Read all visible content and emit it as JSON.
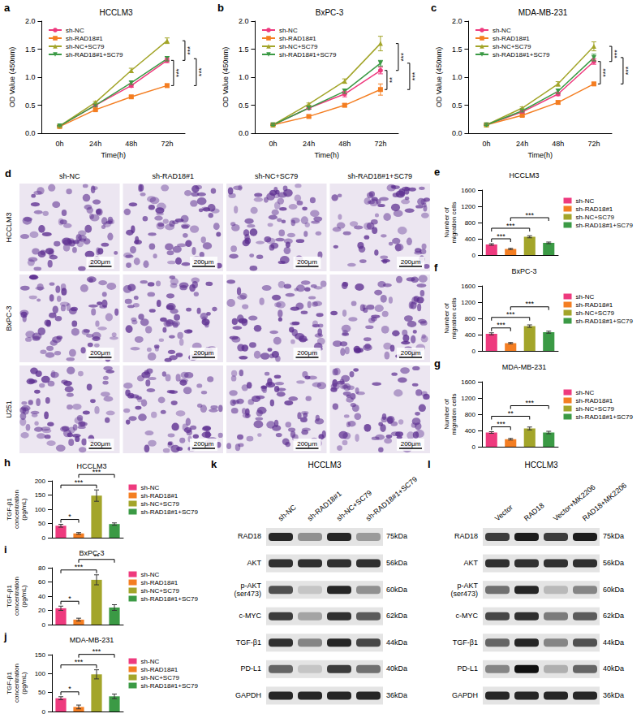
{
  "chart_data": [
    {
      "panel": "a",
      "type": "line",
      "title": "HCCLM3",
      "x_label": "Time(h)",
      "y_label": "OD Value (450nm)",
      "categories": [
        "0h",
        "24h",
        "48h",
        "72h"
      ],
      "ylim": [
        0,
        2
      ],
      "yticks": [
        {
          "value": 0,
          "label": "0.0"
        },
        {
          "value": 0.5,
          "label": "0.5"
        },
        {
          "value": 1,
          "label": "1.0"
        },
        {
          "value": 1.5,
          "label": "1.5"
        },
        {
          "value": 2,
          "label": "2.0"
        }
      ],
      "legend": "upper left",
      "series": [
        {
          "name": "sh-NC",
          "color": "#ee3a7e",
          "marker": "circle",
          "values": [
            0.13,
            0.5,
            0.85,
            1.3
          ],
          "errors": [
            0.01,
            0.02,
            0.03,
            0.04
          ]
        },
        {
          "name": "sh-RAD18#1",
          "color": "#f47e22",
          "marker": "square",
          "values": [
            0.12,
            0.42,
            0.65,
            0.85
          ],
          "errors": [
            0.01,
            0.02,
            0.02,
            0.03
          ]
        },
        {
          "name": "sh-NC+SC79",
          "color": "#a3a52a",
          "marker": "triangle",
          "values": [
            0.13,
            0.55,
            1.12,
            1.65
          ],
          "errors": [
            0.01,
            0.02,
            0.04,
            0.05
          ]
        },
        {
          "name": "sh-RAD18#1+SC79",
          "color": "#3b9a45",
          "marker": "triangle-down",
          "values": [
            0.13,
            0.5,
            0.9,
            1.33
          ],
          "errors": [
            0.01,
            0.02,
            0.03,
            0.04
          ]
        }
      ],
      "annotations": [
        {
          "text": "***",
          "pair": [
            "sh-NC",
            "sh-RAD18#1"
          ]
        },
        {
          "text": "***",
          "pair": [
            "sh-NC",
            "sh-NC+SC79"
          ]
        },
        {
          "text": "***",
          "pair": [
            "sh-RAD18#1",
            "sh-RAD18#1+SC79"
          ]
        }
      ]
    },
    {
      "panel": "b",
      "type": "line",
      "title": "BxPC-3",
      "x_label": "Time(h)",
      "y_label": "OD Value (450nm)",
      "categories": [
        "0h",
        "24h",
        "48h",
        "72h"
      ],
      "ylim": [
        0,
        2
      ],
      "yticks": [
        {
          "value": 0,
          "label": "0.0"
        },
        {
          "value": 0.5,
          "label": "0.5"
        },
        {
          "value": 1,
          "label": "1.0"
        },
        {
          "value": 1.5,
          "label": "1.5"
        },
        {
          "value": 2,
          "label": "2.0"
        }
      ],
      "legend": "upper left",
      "series": [
        {
          "name": "sh-NC",
          "color": "#ee3a7e",
          "marker": "circle",
          "values": [
            0.15,
            0.45,
            0.7,
            1.12
          ],
          "errors": [
            0.01,
            0.02,
            0.05,
            0.06
          ]
        },
        {
          "name": "sh-RAD18#1",
          "color": "#f47e22",
          "marker": "square",
          "values": [
            0.15,
            0.3,
            0.5,
            0.78
          ],
          "errors": [
            0.01,
            0.02,
            0.03,
            0.1
          ]
        },
        {
          "name": "sh-NC+SC79",
          "color": "#a3a52a",
          "marker": "triangle",
          "values": [
            0.15,
            0.52,
            0.93,
            1.6
          ],
          "errors": [
            0.01,
            0.02,
            0.04,
            0.13
          ]
        },
        {
          "name": "sh-RAD18#1+SC79",
          "color": "#3b9a45",
          "marker": "triangle-down",
          "values": [
            0.15,
            0.45,
            0.75,
            1.25
          ],
          "errors": [
            0.01,
            0.02,
            0.04,
            0.05
          ]
        }
      ],
      "annotations": [
        {
          "text": "**",
          "pair": [
            "sh-NC",
            "sh-RAD18#1"
          ]
        },
        {
          "text": "***",
          "pair": [
            "sh-NC",
            "sh-NC+SC79"
          ]
        },
        {
          "text": "***",
          "pair": [
            "sh-RAD18#1",
            "sh-RAD18#1+SC79"
          ]
        }
      ]
    },
    {
      "panel": "c",
      "type": "line",
      "title": "MDA-MB-231",
      "x_label": "Time(h)",
      "y_label": "OD Value (450nm)",
      "categories": [
        "0h",
        "24h",
        "48h",
        "72h"
      ],
      "ylim": [
        0,
        2
      ],
      "yticks": [
        {
          "value": 0,
          "label": "0.0"
        },
        {
          "value": 0.5,
          "label": "0.5"
        },
        {
          "value": 1,
          "label": "1.0"
        },
        {
          "value": 1.5,
          "label": "1.5"
        },
        {
          "value": 2,
          "label": "2.0"
        }
      ],
      "legend": "upper left",
      "series": [
        {
          "name": "sh-NC",
          "color": "#ee3a7e",
          "marker": "circle",
          "values": [
            0.15,
            0.38,
            0.7,
            1.28
          ],
          "errors": [
            0.01,
            0.02,
            0.03,
            0.05
          ]
        },
        {
          "name": "sh-RAD18#1",
          "color": "#f47e22",
          "marker": "square",
          "values": [
            0.15,
            0.32,
            0.55,
            0.88
          ],
          "errors": [
            0.01,
            0.02,
            0.03,
            0.03
          ]
        },
        {
          "name": "sh-NC+SC79",
          "color": "#a3a52a",
          "marker": "triangle",
          "values": [
            0.15,
            0.45,
            0.88,
            1.55
          ],
          "errors": [
            0.01,
            0.02,
            0.04,
            0.08
          ]
        },
        {
          "name": "sh-RAD18#1+SC79",
          "color": "#3b9a45",
          "marker": "triangle-down",
          "values": [
            0.15,
            0.4,
            0.75,
            1.35
          ],
          "errors": [
            0.01,
            0.02,
            0.04,
            0.06
          ]
        }
      ],
      "annotations": [
        {
          "text": "***",
          "pair": [
            "sh-NC",
            "sh-RAD18#1"
          ]
        },
        {
          "text": "***",
          "pair": [
            "sh-NC",
            "sh-NC+SC79"
          ]
        },
        {
          "text": "***",
          "pair": [
            "sh-RAD18#1",
            "sh-RAD18#1+SC79"
          ]
        }
      ]
    },
    {
      "panel": "e",
      "type": "bar",
      "title": "HCCLM3",
      "y_label": "Number of migration cells",
      "categories": [
        "sh-NC",
        "sh-RAD18#1",
        "sh-NC+SC79",
        "sh-RAD18#1+SC79"
      ],
      "colors": [
        "#ee3a7e",
        "#f47e22",
        "#a3a52a",
        "#3b9a45"
      ],
      "values": [
        260,
        150,
        450,
        300
      ],
      "errors": [
        20,
        15,
        25,
        20
      ],
      "ylim": [
        0,
        1600
      ],
      "yticks": [
        0,
        400,
        800,
        1200,
        1600
      ],
      "tick_labels": "y",
      "legend": "right",
      "annotations": [
        {
          "text": "***",
          "pair": [
            "sh-NC",
            "sh-RAD18#1"
          ]
        },
        {
          "text": "***",
          "pair": [
            "sh-NC",
            "sh-NC+SC79"
          ]
        },
        {
          "text": "***",
          "pair": [
            "sh-RAD18#1",
            "sh-RAD18#1+SC79"
          ]
        }
      ]
    },
    {
      "panel": "f",
      "type": "bar",
      "title": "BxPC-3",
      "y_label": "Number of migration cells",
      "categories": [
        "sh-NC",
        "sh-RAD18#1",
        "sh-NC+SC79",
        "sh-RAD18#1+SC79"
      ],
      "colors": [
        "#ee3a7e",
        "#f47e22",
        "#a3a52a",
        "#3b9a45"
      ],
      "values": [
        420,
        190,
        610,
        460
      ],
      "errors": [
        25,
        15,
        30,
        25
      ],
      "ylim": [
        0,
        1600
      ],
      "yticks": [
        0,
        400,
        800,
        1200,
        1600
      ],
      "tick_labels": "y",
      "legend": "right",
      "annotations": [
        {
          "text": "***",
          "pair": [
            "sh-NC",
            "sh-RAD18#1"
          ]
        },
        {
          "text": "***",
          "pair": [
            "sh-NC",
            "sh-NC+SC79"
          ]
        },
        {
          "text": "***",
          "pair": [
            "sh-RAD18#1",
            "sh-RAD18#1+SC79"
          ]
        }
      ]
    },
    {
      "panel": "g",
      "type": "bar",
      "title": "MDA-MB-231",
      "y_label": "Number of migration cells",
      "categories": [
        "sh-NC",
        "sh-RAD18#1",
        "sh-NC+SC79",
        "sh-RAD18#1+SC79"
      ],
      "colors": [
        "#ee3a7e",
        "#f47e22",
        "#a3a52a",
        "#3b9a45"
      ],
      "values": [
        350,
        185,
        450,
        350
      ],
      "errors": [
        20,
        20,
        35,
        30
      ],
      "ylim": [
        0,
        1600
      ],
      "yticks": [
        0,
        400,
        800,
        1200,
        1600
      ],
      "tick_labels": "y",
      "legend": "right",
      "annotations": [
        {
          "text": "***",
          "pair": [
            "sh-NC",
            "sh-RAD18#1"
          ]
        },
        {
          "text": "**",
          "pair": [
            "sh-NC",
            "sh-NC+SC79"
          ]
        },
        {
          "text": "***",
          "pair": [
            "sh-RAD18#1",
            "sh-RAD18#1+SC79"
          ]
        }
      ]
    },
    {
      "panel": "h",
      "type": "bar",
      "title": "HCCLM3",
      "y_label": "TGF-β1 concentration (pg/mL)",
      "categories": [
        "sh-NC",
        "sh-RAD18#1",
        "sh-NC+SC79",
        "sh-RAD18#1+SC79"
      ],
      "colors": [
        "#ee3a7e",
        "#f47e22",
        "#a3a52a",
        "#3b9a45"
      ],
      "values": [
        42,
        15,
        148,
        48
      ],
      "errors": [
        5,
        3,
        20,
        4
      ],
      "ylim": [
        0,
        200
      ],
      "yticks": [
        0,
        50,
        100,
        150,
        200
      ],
      "tick_labels": "y",
      "legend": "right",
      "annotations": [
        {
          "text": "*",
          "pair": [
            "sh-NC",
            "sh-RAD18#1"
          ]
        },
        {
          "text": "***",
          "pair": [
            "sh-NC",
            "sh-NC+SC79"
          ]
        },
        {
          "text": "***",
          "pair": [
            "sh-RAD18#1",
            "sh-RAD18#1+SC79"
          ]
        }
      ]
    },
    {
      "panel": "i",
      "type": "bar",
      "title": "BxPC-3",
      "y_label": "TGF-β1 concentration (pg/mL)",
      "categories": [
        "sh-NC",
        "sh-RAD18#1",
        "sh-NC+SC79",
        "sh-RAD18#1+SC79"
      ],
      "colors": [
        "#ee3a7e",
        "#f47e22",
        "#a3a52a",
        "#3b9a45"
      ],
      "values": [
        23,
        7,
        63,
        24
      ],
      "errors": [
        3,
        2,
        7,
        4
      ],
      "ylim": [
        0,
        80
      ],
      "yticks": [
        0,
        20,
        40,
        60,
        80
      ],
      "tick_labels": "y",
      "legend": "right",
      "annotations": [
        {
          "text": "*",
          "pair": [
            "sh-NC",
            "sh-RAD18#1"
          ]
        },
        {
          "text": "***",
          "pair": [
            "sh-NC",
            "sh-NC+SC79"
          ]
        },
        {
          "text": "**",
          "pair": [
            "sh-RAD18#1",
            "sh-RAD18#1+SC79"
          ]
        }
      ]
    },
    {
      "panel": "j",
      "type": "bar",
      "title": "MDA-MB-231",
      "y_label": "TGF-β1 concentration (pg/mL)",
      "categories": [
        "sh-NC",
        "sh-RAD18#1",
        "sh-NC+SC79",
        "sh-RAD18#1+SC79"
      ],
      "colors": [
        "#ee3a7e",
        "#f47e22",
        "#a3a52a",
        "#3b9a45"
      ],
      "values": [
        35,
        12,
        98,
        40
      ],
      "errors": [
        4,
        5,
        12,
        6
      ],
      "ylim": [
        0,
        150
      ],
      "yticks": [
        0,
        50,
        100,
        150
      ],
      "tick_labels": "y",
      "legend": "right",
      "annotations": [
        {
          "text": "*",
          "pair": [
            "sh-NC",
            "sh-RAD18#1"
          ]
        },
        {
          "text": "***",
          "pair": [
            "sh-NC",
            "sh-NC+SC79"
          ]
        },
        {
          "text": "***",
          "pair": [
            "sh-RAD18#1",
            "sh-RAD18#1+SC79"
          ]
        }
      ]
    }
  ],
  "images": {
    "panel": "d",
    "columns": [
      "sh-NC",
      "sh-RAD18#1",
      "sh-NC+SC79",
      "sh-RAD18#1+SC79"
    ],
    "rows": [
      "HCCLM3",
      "BxPC-3",
      "U251"
    ],
    "scale_bar": "200μm"
  },
  "blots": [
    {
      "panel": "k",
      "title": "HCCLM3",
      "columns": [
        "sh-NC",
        "sh-RAD18#1",
        "sh-NC+SC79",
        "sh-RAD18#1+SC79"
      ],
      "rows": [
        {
          "protein": "RAD18",
          "size": "75kDa",
          "bands": [
            0.9,
            0.4,
            0.9,
            0.35
          ]
        },
        {
          "protein": "AKT",
          "size": "56kDa",
          "bands": [
            0.85,
            0.85,
            0.85,
            0.85
          ]
        },
        {
          "protein": "p-AKT (ser473)",
          "size": "60kDa",
          "bands": [
            0.7,
            0.15,
            0.9,
            0.4
          ]
        },
        {
          "protein": "c-MYC",
          "size": "62kDa",
          "bands": [
            0.8,
            0.3,
            0.85,
            0.65
          ]
        },
        {
          "protein": "TGF-β1",
          "size": "44kDa",
          "bands": [
            0.85,
            0.45,
            0.9,
            0.75
          ]
        },
        {
          "protein": "PD-L1",
          "size": "40kDa",
          "bands": [
            0.6,
            0.15,
            0.8,
            0.55
          ]
        },
        {
          "protein": "GAPDH",
          "size": "36kDa",
          "bands": [
            0.9,
            0.9,
            0.9,
            0.9
          ]
        }
      ]
    },
    {
      "panel": "l",
      "title": "HCCLM3",
      "columns": [
        "Vector",
        "RAD18",
        "Vector+MK2206",
        "RAD18+MK2206"
      ],
      "rows": [
        {
          "protein": "RAD18",
          "size": "75kDa",
          "bands": [
            0.8,
            0.95,
            0.8,
            0.95
          ]
        },
        {
          "protein": "AKT",
          "size": "56kDa",
          "bands": [
            0.85,
            0.85,
            0.85,
            0.85
          ]
        },
        {
          "protein": "p-AKT (ser473)",
          "size": "60kDa",
          "bands": [
            0.55,
            0.9,
            0.2,
            0.45
          ]
        },
        {
          "protein": "c-MYC",
          "size": "62kDa",
          "bands": [
            0.75,
            0.85,
            0.5,
            0.65
          ]
        },
        {
          "protein": "TGF-β1",
          "size": "44kDa",
          "bands": [
            0.6,
            0.9,
            0.45,
            0.7
          ]
        },
        {
          "protein": "PD-L1",
          "size": "40kDa",
          "bands": [
            0.45,
            1.0,
            0.25,
            0.6
          ]
        },
        {
          "protein": "GAPDH",
          "size": "36kDa",
          "bands": [
            0.9,
            0.9,
            0.9,
            0.9
          ]
        }
      ]
    }
  ]
}
